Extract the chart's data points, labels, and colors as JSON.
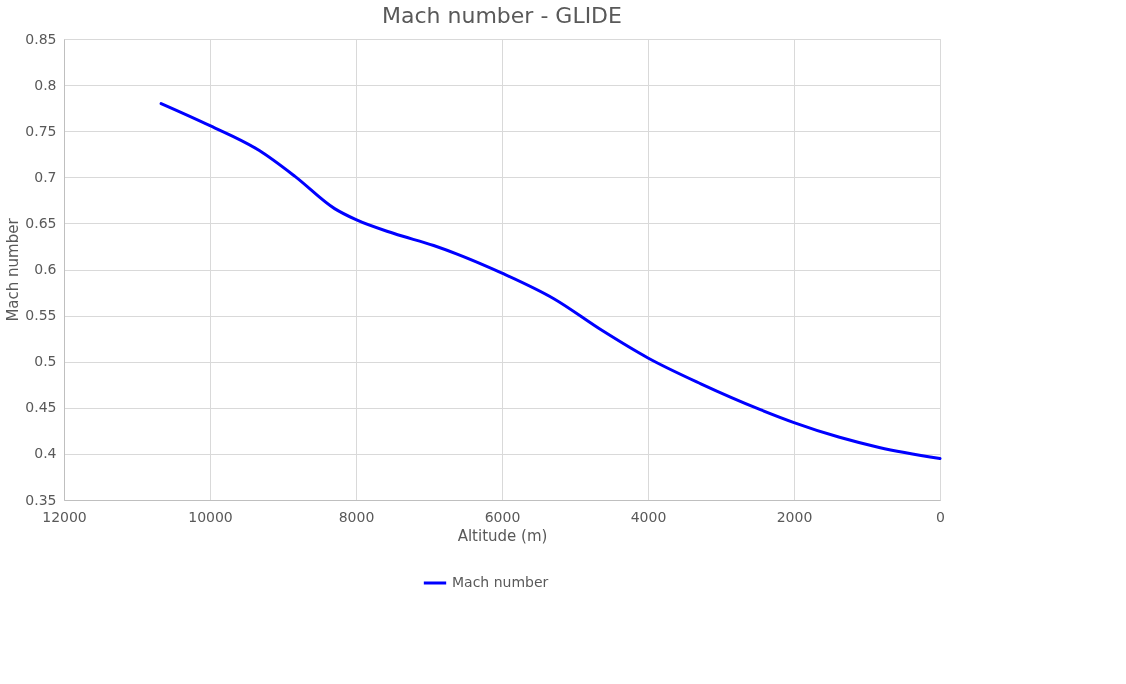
{
  "chart_data": {
    "type": "line",
    "title": "Mach number - GLIDE",
    "xlabel": "Altitude (m)",
    "ylabel": "Mach number",
    "x": [
      10670,
      10000,
      9324,
      8836,
      8293,
      8000,
      7479,
      6936,
      6000,
      5284,
      4632,
      4000,
      3276,
      2461,
      2000,
      1376,
      833,
      0
    ],
    "series": [
      {
        "name": "Mach number",
        "color": "#0000ff",
        "values": [
          0.78,
          0.756,
          0.729,
          0.701,
          0.666,
          0.654,
          0.639,
          0.626,
          0.596,
          0.568,
          0.534,
          0.504,
          0.476,
          0.448,
          0.434,
          0.418,
          0.407,
          0.395
        ]
      }
    ],
    "xlim": [
      12000,
      0
    ],
    "xticks": [
      12000,
      10000,
      8000,
      6000,
      4000,
      2000,
      0
    ],
    "ylim": [
      0.35,
      0.85
    ],
    "yticks": [
      0.35,
      0.4,
      0.45,
      0.5,
      0.55,
      0.6,
      0.65,
      0.7,
      0.75,
      0.8,
      0.85
    ],
    "grid": true,
    "legend": "bottom",
    "marker": "none",
    "line_style": "solid"
  }
}
